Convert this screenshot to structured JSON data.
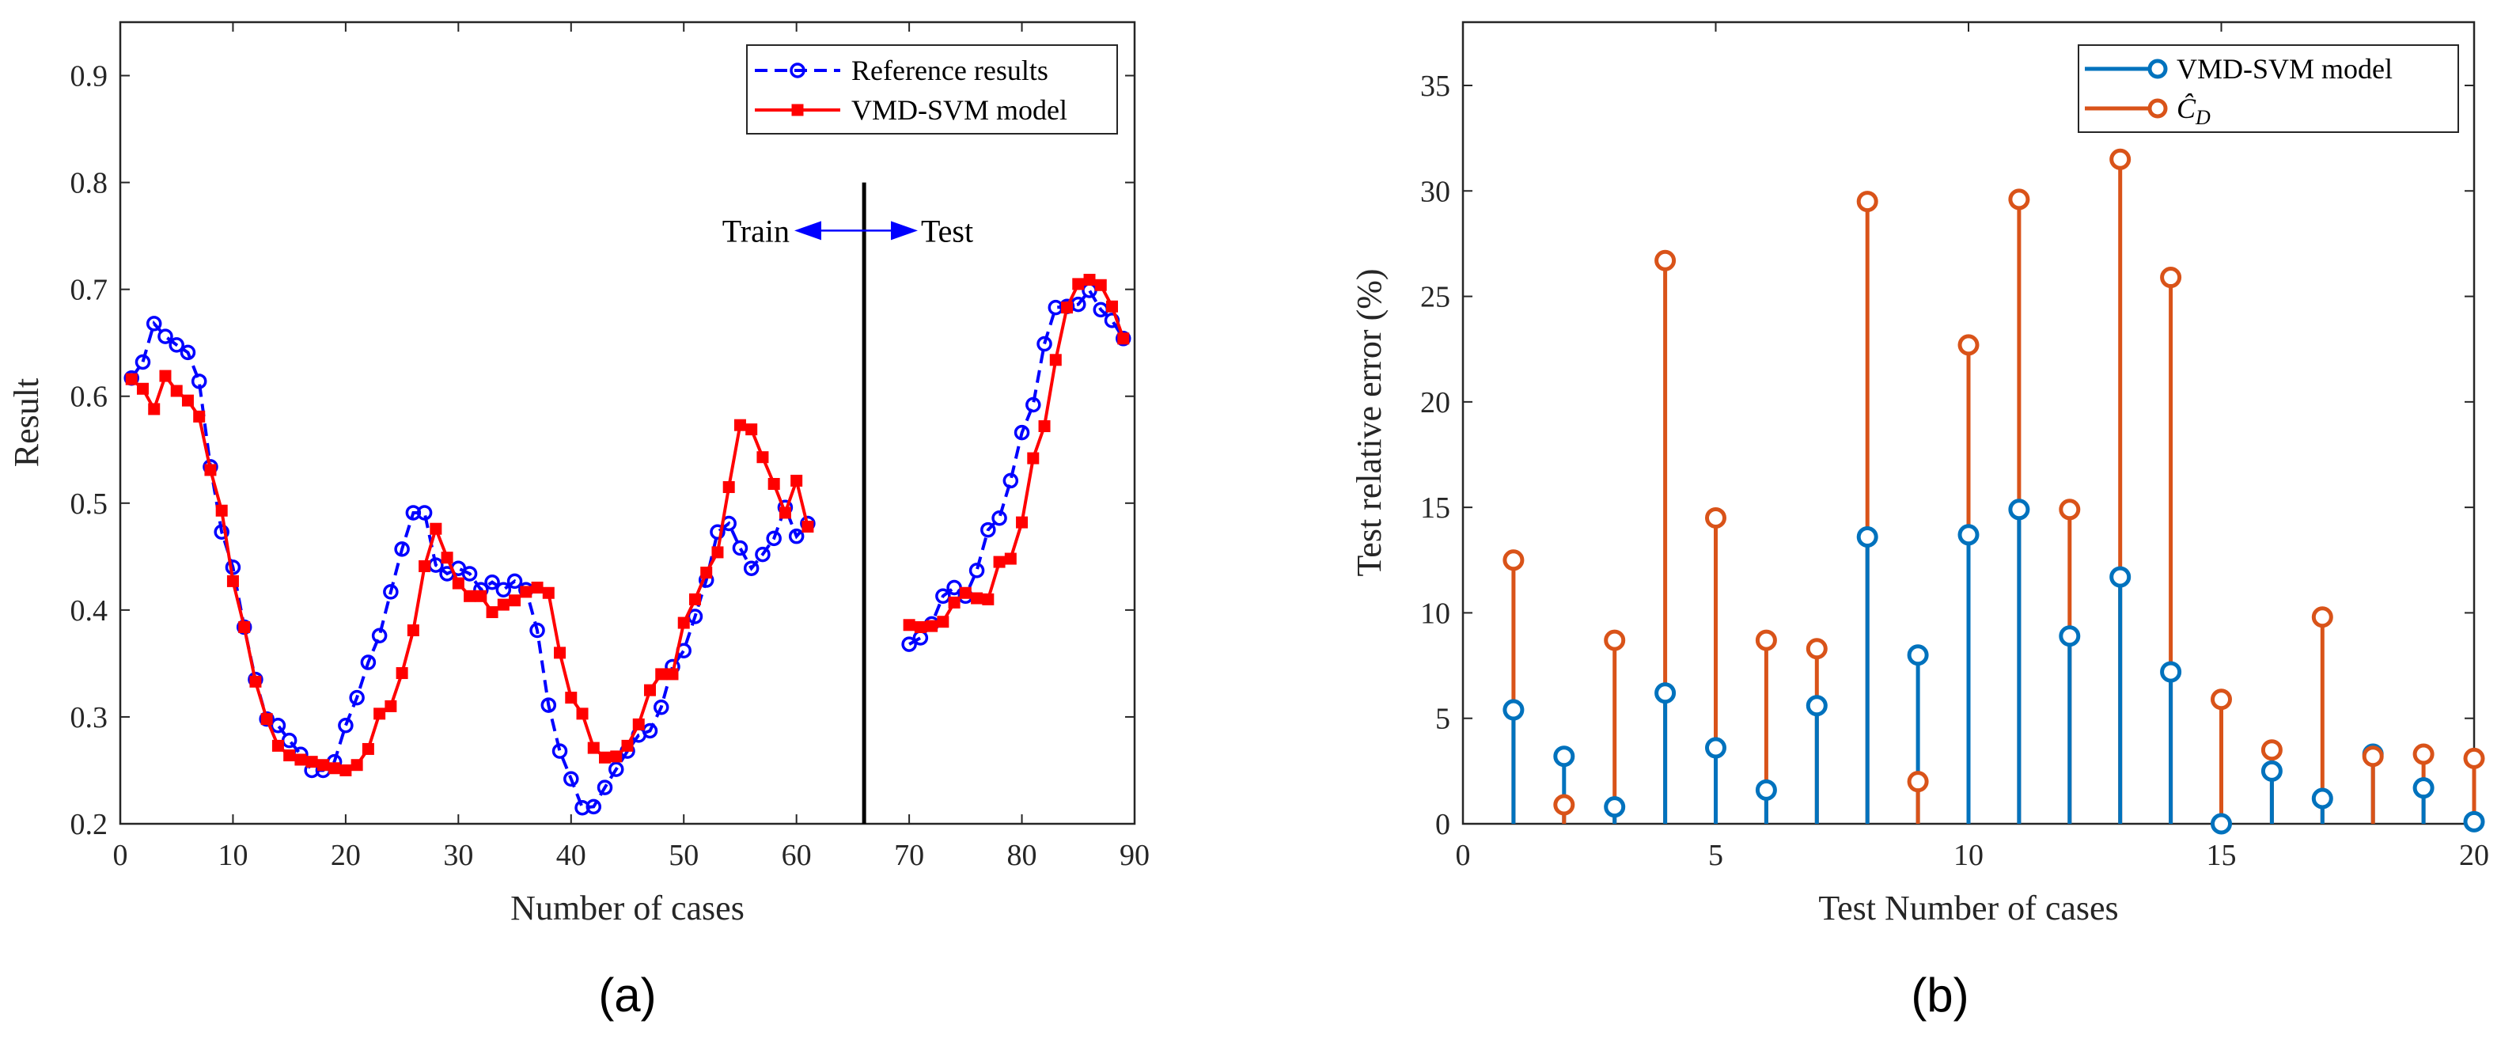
{
  "chart_data": [
    {
      "type": "line",
      "panel_label": "(a)",
      "xlabel": "Number of cases",
      "ylabel": "Result",
      "xlim": [
        0,
        90
      ],
      "ylim": [
        0.2,
        0.95
      ],
      "xticks": [
        0,
        10,
        20,
        30,
        40,
        50,
        60,
        70,
        80,
        90
      ],
      "yticks": [
        0.2,
        0.3,
        0.4,
        0.5,
        0.6,
        0.7,
        0.8,
        0.9
      ],
      "ytick_labels": [
        "0.2",
        "0.3",
        "0.4",
        "0.5",
        "0.6",
        "0.7",
        "0.8",
        "0.9"
      ],
      "divider_x": 66,
      "annotation": {
        "left": "Train",
        "right": "Test",
        "y": 0.755
      },
      "legend_position": "top-right",
      "series": [
        {
          "name": "Reference results",
          "color": "#0000ff",
          "style": "dashed",
          "marker": "circle",
          "segments": [
            {
              "x": [
                1,
                2,
                3,
                4,
                5,
                6,
                7,
                8,
                9,
                10,
                11,
                12,
                13,
                14,
                15,
                16,
                17,
                18,
                19,
                20,
                21,
                22,
                23,
                24,
                25,
                26,
                27,
                28,
                29,
                30,
                31,
                32,
                33,
                34,
                35,
                36,
                37,
                38,
                39,
                40,
                41,
                42,
                43,
                44,
                45,
                46,
                47,
                48,
                49,
                50,
                51,
                52,
                53,
                54,
                55,
                56,
                57,
                58,
                59,
                60,
                61
              ],
              "y": [
                0.617,
                0.632,
                0.668,
                0.656,
                0.648,
                0.641,
                0.614,
                0.534,
                0.473,
                0.44,
                0.384,
                0.335,
                0.298,
                0.292,
                0.278,
                0.265,
                0.25,
                0.25,
                0.258,
                0.292,
                0.318,
                0.351,
                0.376,
                0.417,
                0.457,
                0.491,
                0.491,
                0.442,
                0.434,
                0.439,
                0.434,
                0.419,
                0.426,
                0.419,
                0.427,
                0.419,
                0.381,
                0.311,
                0.268,
                0.242,
                0.215,
                0.216,
                0.234,
                0.251,
                0.268,
                0.283,
                0.287,
                0.309,
                0.347,
                0.362,
                0.394,
                0.428,
                0.473,
                0.481,
                0.458,
                0.439,
                0.452,
                0.467,
                0.496,
                0.469,
                0.481
              ]
            },
            {
              "x": [
                70,
                71,
                72,
                73,
                74,
                75,
                76,
                77,
                78,
                79,
                80,
                81,
                82,
                83,
                84,
                85,
                86,
                87,
                88,
                89
              ],
              "y": [
                0.368,
                0.374,
                0.387,
                0.413,
                0.421,
                0.413,
                0.437,
                0.475,
                0.486,
                0.521,
                0.566,
                0.592,
                0.649,
                0.683,
                0.684,
                0.686,
                0.699,
                0.681,
                0.671,
                0.654
              ]
            }
          ]
        },
        {
          "name": "VMD-SVM model",
          "color": "#ff0000",
          "style": "solid",
          "marker": "square",
          "segments": [
            {
              "x": [
                1,
                2,
                3,
                4,
                5,
                6,
                7,
                8,
                9,
                10,
                11,
                12,
                13,
                14,
                15,
                16,
                17,
                18,
                19,
                20,
                21,
                22,
                23,
                24,
                25,
                26,
                27,
                28,
                29,
                30,
                31,
                32,
                33,
                34,
                35,
                36,
                37,
                38,
                39,
                40,
                41,
                42,
                43,
                44,
                45,
                46,
                47,
                48,
                49,
                50,
                51,
                52,
                53,
                54,
                55,
                56,
                57,
                58,
                59,
                60,
                61
              ],
              "y": [
                0.616,
                0.607,
                0.588,
                0.619,
                0.605,
                0.596,
                0.581,
                0.531,
                0.493,
                0.427,
                0.384,
                0.333,
                0.298,
                0.273,
                0.264,
                0.26,
                0.258,
                0.255,
                0.252,
                0.25,
                0.255,
                0.27,
                0.303,
                0.31,
                0.341,
                0.381,
                0.441,
                0.476,
                0.449,
                0.425,
                0.413,
                0.413,
                0.398,
                0.405,
                0.409,
                0.417,
                0.421,
                0.416,
                0.36,
                0.318,
                0.303,
                0.271,
                0.262,
                0.263,
                0.273,
                0.293,
                0.325,
                0.34,
                0.34,
                0.388,
                0.41,
                0.435,
                0.454,
                0.515,
                0.573,
                0.569,
                0.543,
                0.518,
                0.491,
                0.521,
                0.478
              ]
            },
            {
              "x": [
                70,
                71,
                72,
                73,
                74,
                75,
                76,
                77,
                78,
                79,
                80,
                81,
                82,
                83,
                84,
                85,
                86,
                87,
                88,
                89
              ],
              "y": [
                0.386,
                0.384,
                0.385,
                0.389,
                0.407,
                0.416,
                0.411,
                0.41,
                0.445,
                0.448,
                0.482,
                0.542,
                0.572,
                0.634,
                0.683,
                0.705,
                0.709,
                0.704,
                0.684,
                0.654
              ]
            }
          ]
        }
      ]
    },
    {
      "type": "stem",
      "panel_label": "(b)",
      "xlabel": "Test Number of cases",
      "ylabel": "Test relative error (%)",
      "xlim": [
        0,
        20
      ],
      "ylim": [
        0,
        38
      ],
      "xticks": [
        0,
        5,
        10,
        15,
        20
      ],
      "yticks": [
        0,
        5,
        10,
        15,
        20,
        25,
        30,
        35
      ],
      "legend_position": "top-right",
      "x": [
        1,
        2,
        3,
        4,
        5,
        6,
        7,
        8,
        9,
        10,
        11,
        12,
        13,
        14,
        15,
        16,
        17,
        18,
        19,
        20
      ],
      "series": [
        {
          "name": "VMD-SVM model",
          "color": "#0072bd",
          "values": [
            5.4,
            3.2,
            0.8,
            6.2,
            3.6,
            1.6,
            5.6,
            13.6,
            8.0,
            13.7,
            14.9,
            8.9,
            11.7,
            7.2,
            0.0,
            2.5,
            1.2,
            3.3,
            1.7,
            0.1
          ]
        },
        {
          "name": "Ĉ_D",
          "color": "#d95319",
          "values": [
            12.5,
            0.9,
            8.7,
            26.7,
            14.5,
            8.7,
            8.3,
            29.5,
            2.0,
            22.7,
            29.6,
            14.9,
            31.5,
            25.9,
            5.9,
            3.5,
            9.8,
            3.2,
            3.3,
            3.1
          ]
        }
      ]
    }
  ]
}
